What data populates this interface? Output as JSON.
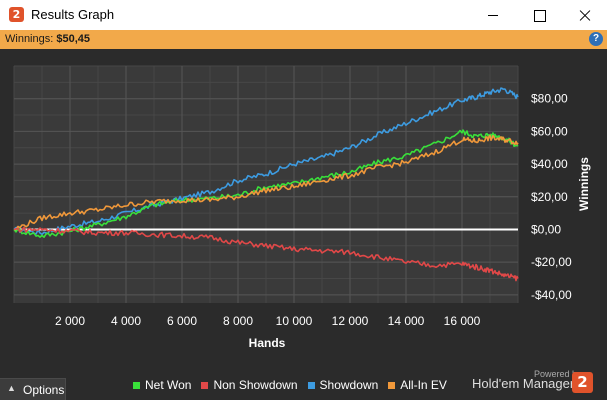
{
  "window": {
    "title": "Results Graph",
    "logo_glyph": "2",
    "buttons": [
      "minimize-icon",
      "maximize-icon",
      "close-icon"
    ]
  },
  "infobar": {
    "label": "Winnings:",
    "value": "$50,45",
    "help_icon": "?",
    "background": "#f2a94a"
  },
  "chart_data": {
    "type": "line",
    "xlabel": "Hands",
    "ylabel": "Winnings",
    "xlim": [
      0,
      18000
    ],
    "ylim": [
      -45,
      100
    ],
    "x_ticks": [
      2000,
      4000,
      6000,
      8000,
      10000,
      12000,
      14000,
      16000
    ],
    "x_tick_labels": [
      "2 000",
      "4 000",
      "6 000",
      "8 000",
      "10 000",
      "12 000",
      "14 000",
      "16 000"
    ],
    "y_ticks": [
      -40,
      -20,
      0,
      20,
      40,
      60,
      80
    ],
    "y_tick_labels": [
      "-$40,00",
      "-$20,00",
      "$0,00",
      "$20,00",
      "$40,00",
      "$60,00",
      "$80,00"
    ],
    "grid": true,
    "zero_line": true,
    "legend_position": "bottom",
    "series": [
      {
        "name": "Showdown",
        "color": "#3d9be0",
        "x": [
          0,
          1000,
          2000,
          3000,
          4000,
          5000,
          6000,
          7000,
          8000,
          9000,
          10000,
          11000,
          12000,
          13000,
          14000,
          15000,
          16000,
          16500,
          17000,
          17500,
          18000
        ],
        "y": [
          0,
          -2,
          2,
          5,
          10,
          15,
          19,
          23,
          30,
          34,
          40,
          44,
          50,
          58,
          65,
          72,
          79,
          81,
          84,
          86,
          81
        ]
      },
      {
        "name": "Net Won",
        "color": "#39e03a",
        "x": [
          0,
          1000,
          2000,
          3000,
          4000,
          5000,
          6000,
          7000,
          8000,
          9000,
          10000,
          11000,
          12000,
          13000,
          14000,
          15000,
          16000,
          16500,
          17000,
          17500,
          18000
        ],
        "y": [
          0,
          -4,
          -1,
          3,
          8,
          15,
          18,
          19,
          21,
          26,
          28,
          32,
          35,
          41,
          45,
          52,
          60,
          57,
          58,
          56,
          51
        ]
      },
      {
        "name": "All-In EV",
        "color": "#f0983a",
        "x": [
          0,
          1000,
          2000,
          3000,
          4000,
          5000,
          6000,
          7000,
          8000,
          9000,
          10000,
          11000,
          12000,
          13000,
          14000,
          15000,
          16000,
          16500,
          17000,
          17500,
          18000
        ],
        "y": [
          0,
          7,
          10,
          12,
          15,
          17,
          18,
          18,
          20,
          24,
          26,
          30,
          33,
          38,
          41,
          47,
          55,
          54,
          56,
          55,
          53
        ]
      },
      {
        "name": "Non Showdown",
        "color": "#e04848",
        "x": [
          0,
          1000,
          2000,
          3000,
          4000,
          5000,
          6000,
          7000,
          8000,
          9000,
          10000,
          11000,
          12000,
          13000,
          14000,
          15000,
          16000,
          16500,
          17000,
          17500,
          18000
        ],
        "y": [
          0,
          0,
          -1,
          -2,
          -2,
          -3,
          -4,
          -5,
          -8,
          -10,
          -12,
          -13,
          -14,
          -17,
          -20,
          -22,
          -21,
          -23,
          -25,
          -28,
          -30
        ]
      }
    ]
  },
  "bottombar": {
    "options_label": "Options",
    "options_icon": "caret-up-icon",
    "legend": [
      {
        "label": "Net Won",
        "color": "#39e03a"
      },
      {
        "label": "Non Showdown",
        "color": "#e04848"
      },
      {
        "label": "Showdown",
        "color": "#3d9be0"
      },
      {
        "label": "All-In EV",
        "color": "#f0983a"
      }
    ],
    "powered_by": "Powered by",
    "brand": "Hold'em Manager",
    "brand_logo_glyph": "2"
  }
}
